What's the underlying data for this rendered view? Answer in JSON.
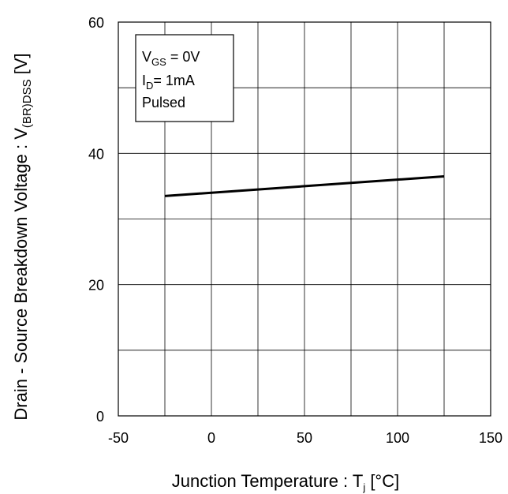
{
  "chart_data": {
    "type": "line",
    "xlabel": {
      "main": "Junction Temperature : T",
      "sub": "j",
      "unit": " [°C]"
    },
    "ylabel": {
      "main": "Drain - Source Breakdown Voltage : V",
      "sub": "(BR)DSS",
      "unit": " [V]"
    },
    "xlim": [
      -50,
      150
    ],
    "ylim": [
      0,
      60
    ],
    "x_ticks": [
      "-50",
      "0",
      "50",
      "100",
      "150"
    ],
    "y_ticks": [
      "0",
      "20",
      "40",
      "60"
    ],
    "x_grid_step": 25,
    "y_grid_step": 10,
    "grid": true,
    "series": [
      {
        "x": [
          -25,
          125
        ],
        "y": [
          33.5,
          36.5
        ]
      }
    ],
    "conditions": {
      "line1_main": "V",
      "line1_sub": "GS",
      "line1_rest": " = 0V",
      "line2_main": "I",
      "line2_sub": "D",
      "line2_rest": "= 1mA",
      "line3": "Pulsed"
    }
  }
}
